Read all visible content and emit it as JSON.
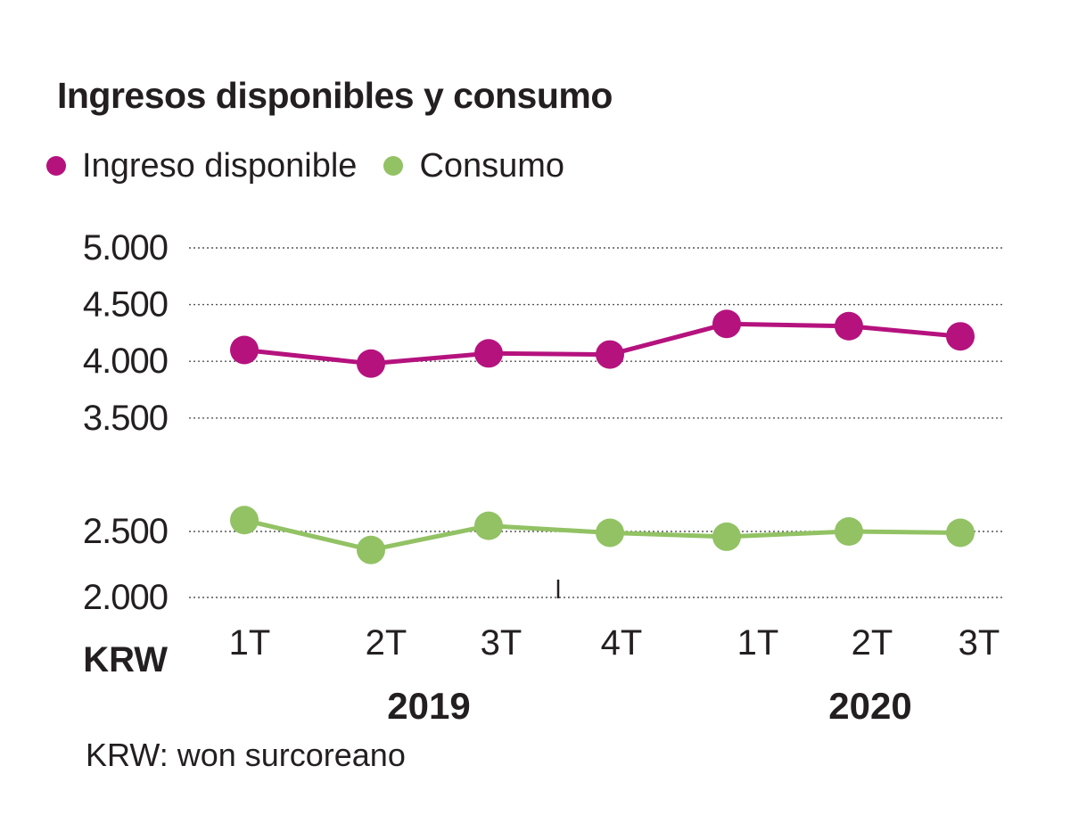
{
  "chart_data": {
    "type": "line",
    "title": "Ingresos disponibles y consumo",
    "unit_label": "KRW",
    "footnote": "KRW: won surcoreano",
    "categories": [
      "1T",
      "2T",
      "3T",
      "4T",
      "1T",
      "2T",
      "3T"
    ],
    "year_labels": [
      "2019",
      "2020"
    ],
    "y_ticks": [
      "5.000",
      "4.500",
      "4.000",
      "3.500",
      "2.500",
      "2.000"
    ],
    "series": [
      {
        "name": "Ingreso disponible",
        "color": "#b5127e",
        "values": [
          4100,
          3980,
          4070,
          4060,
          4330,
          4310,
          4220
        ]
      },
      {
        "name": "Consumo",
        "color": "#92c264",
        "values": [
          2600,
          2360,
          2550,
          2490,
          2460,
          2500,
          2490
        ]
      }
    ],
    "grid": true,
    "legend_position": "top-left"
  }
}
